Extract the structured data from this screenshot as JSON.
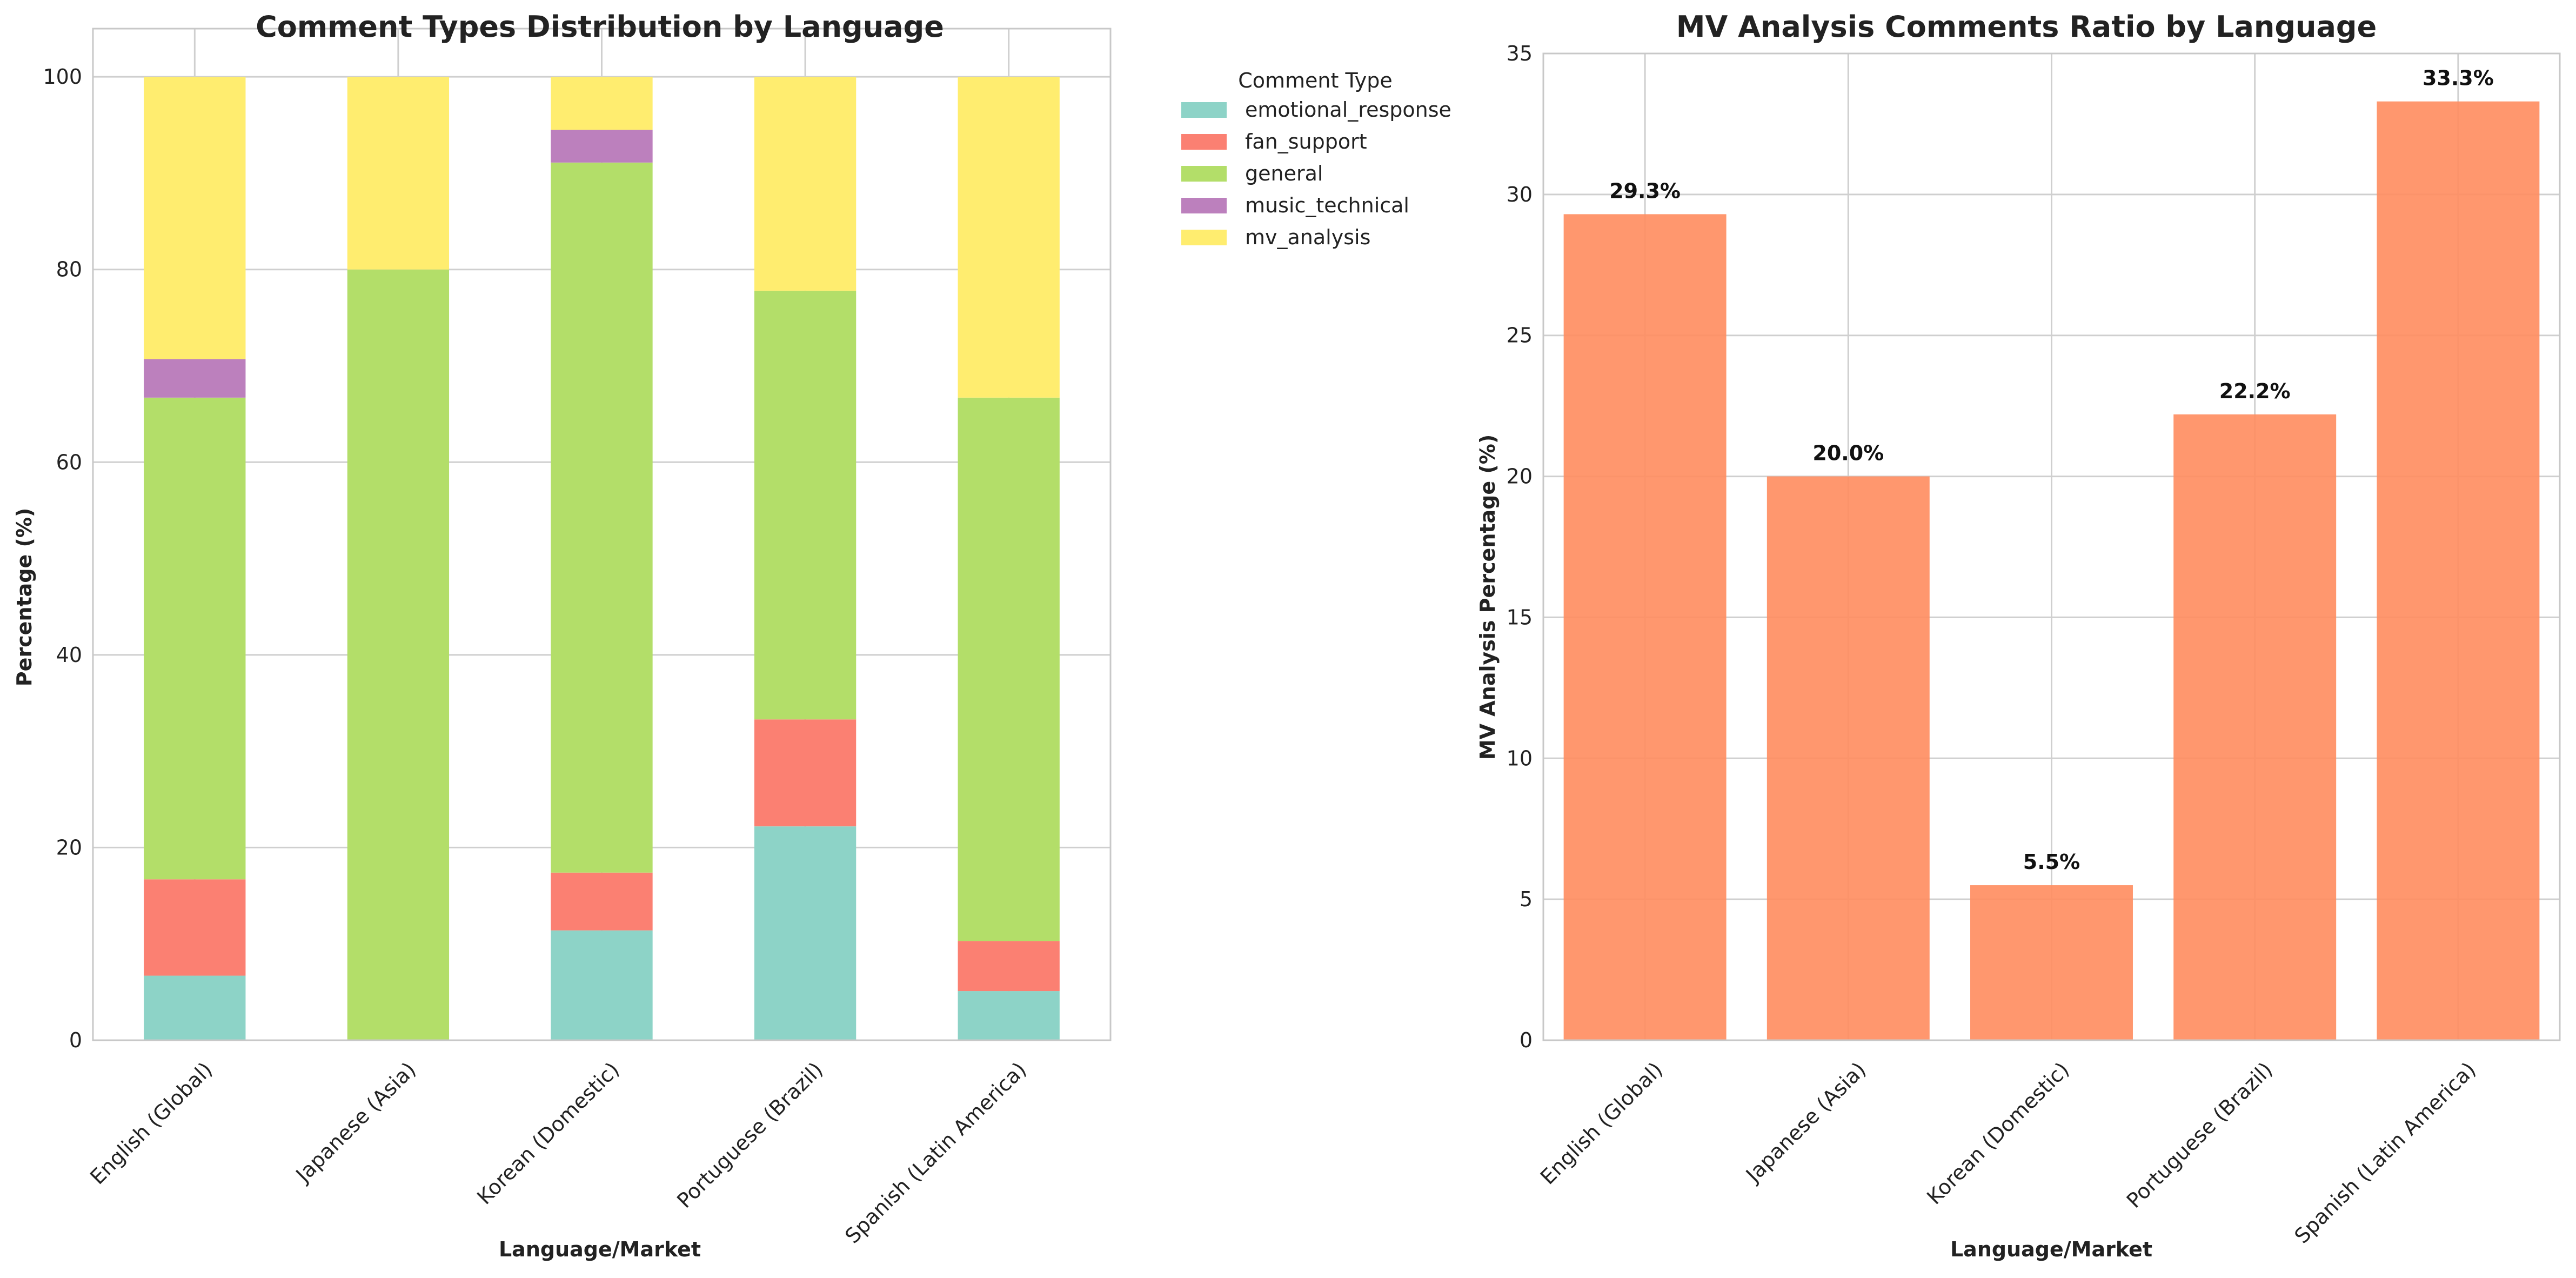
{
  "chart_data": [
    {
      "type": "bar",
      "stacked": true,
      "title": "Comment Types Distribution by Language",
      "xlabel": "Language/Market",
      "ylabel": "Percentage (%)",
      "ylim": [
        0,
        105
      ],
      "yticks": [
        0,
        20,
        40,
        60,
        80,
        100
      ],
      "grid": true,
      "legend_title": "Comment Type",
      "legend_position": "outside-top-right",
      "categories": [
        "English (Global)",
        "Japanese (Asia)",
        "Korean (Domestic)",
        "Portuguese (Brazil)",
        "Spanish (Latin America)"
      ],
      "series": [
        {
          "name": "emotional_response",
          "color": "#8dd3c7",
          "values": [
            6.7,
            0,
            11.4,
            22.2,
            5.1
          ]
        },
        {
          "name": "fan_support",
          "color": "#fb8072",
          "values": [
            10.0,
            0,
            6.0,
            11.1,
            5.2
          ]
        },
        {
          "name": "general",
          "color": "#b3de69",
          "values": [
            50.0,
            80.0,
            73.7,
            44.5,
            56.4
          ]
        },
        {
          "name": "music_technical",
          "color": "#bc80bd",
          "values": [
            4.0,
            0,
            3.4,
            0,
            0
          ]
        },
        {
          "name": "mv_analysis",
          "color": "#ffed6f",
          "values": [
            29.3,
            20.0,
            5.5,
            22.2,
            33.3
          ]
        }
      ]
    },
    {
      "type": "bar",
      "title": "MV Analysis Comments Ratio by Language",
      "xlabel": "Language/Market",
      "ylabel": "MV Analysis Percentage (%)",
      "ylim": [
        0,
        35
      ],
      "yticks": [
        0,
        5,
        10,
        15,
        20,
        25,
        30,
        35
      ],
      "grid": true,
      "bar_color": "#ff8c5e",
      "categories": [
        "English (Global)",
        "Japanese (Asia)",
        "Korean (Domestic)",
        "Portuguese (Brazil)",
        "Spanish (Latin America)"
      ],
      "values": [
        29.3,
        20.0,
        5.5,
        22.2,
        33.3
      ],
      "data_labels": [
        "29.3%",
        "20.0%",
        "5.5%",
        "22.2%",
        "33.3%"
      ]
    }
  ]
}
